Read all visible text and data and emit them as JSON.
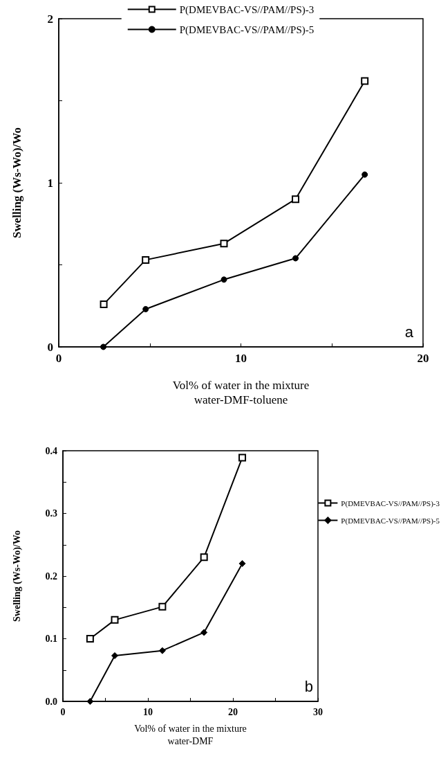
{
  "chart_data": [
    {
      "type": "line",
      "ylabel": "Swelling (Ws-Wo)/Wo",
      "xlabel": "Vol% of water in the mixture\nwater-DMF-toluene",
      "annotations": [
        "a"
      ],
      "xlim": [
        0,
        20
      ],
      "xticks": [
        0,
        {
          "value": 5,
          "label": null
        },
        10,
        {
          "value": 15,
          "label": null
        },
        20
      ],
      "ylim": [
        0,
        2
      ],
      "yticks": [
        0,
        {
          "value": 0.5,
          "label": null
        },
        1,
        {
          "value": 1.5,
          "label": null
        },
        2
      ],
      "grid": false,
      "legend": "top",
      "line_style": "solid",
      "series": [
        {
          "name": "P(DMEVBAC-VS//PAM//PS)-3",
          "color": "#000000",
          "marker": "square",
          "x": [
            2.47,
            4.77,
            9.07,
            13.0,
            16.8
          ],
          "values": [
            0.26,
            0.53,
            0.63,
            0.9,
            1.62
          ]
        },
        {
          "name": "P(DMEVBAC-VS//PAM//PS)-5",
          "color": "#000000",
          "marker": "circle",
          "x": [
            2.45,
            4.77,
            9.07,
            13.0,
            16.8
          ],
          "values": [
            0,
            0.23,
            0.41,
            0.54,
            1.05
          ]
        }
      ]
    },
    {
      "type": "line",
      "ylabel": "Swelling (Ws-Wo)/Wo",
      "xlabel": "Vol% of water in the mixture\nwater-DMF",
      "annotations": [
        "b"
      ],
      "xlim": [
        0,
        30
      ],
      "xticks": [
        0,
        {
          "value": 5,
          "label": null
        },
        10,
        {
          "value": 15,
          "label": null
        },
        20,
        {
          "value": 25,
          "label": null
        },
        30
      ],
      "ylim": [
        0,
        0.4
      ],
      "yticks": [
        {
          "value": 0,
          "label": "0.0"
        },
        {
          "value": 0.05,
          "label": null
        },
        0.1,
        {
          "value": 0.15,
          "label": null
        },
        0.2,
        {
          "value": 0.25,
          "label": null
        },
        0.3,
        {
          "value": 0.35,
          "label": null
        },
        0.4
      ],
      "grid": false,
      "legend": "right",
      "line_style": "solid",
      "series": [
        {
          "name": "P(DMEVBAC-VS//PAM//PS)-3",
          "color": "#000000",
          "marker": "square",
          "x": [
            3.2,
            6.1,
            11.7,
            16.6,
            21.1
          ],
          "values": [
            0.1,
            0.13,
            0.151,
            0.23,
            0.389
          ]
        },
        {
          "name": "P(DMEVBAC-VS//PAM//PS)-5",
          "color": "#000000",
          "marker": "diamond",
          "x": [
            3.2,
            6.1,
            11.7,
            16.6,
            21.1
          ],
          "values": [
            0,
            0.073,
            0.081,
            0.11,
            0.22
          ]
        }
      ]
    }
  ]
}
